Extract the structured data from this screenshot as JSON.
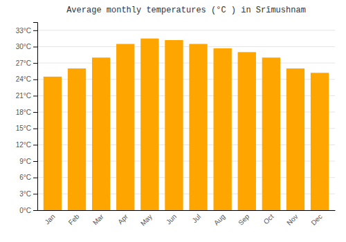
{
  "chart_data": {
    "type": "bar",
    "title": "Average monthly temperatures (°C ) in Srīmushnam",
    "categories": [
      "Jan",
      "Feb",
      "Mar",
      "Apr",
      "May",
      "Jun",
      "Jul",
      "Aug",
      "Sep",
      "Oct",
      "Nov",
      "Dec"
    ],
    "values": [
      24.5,
      26.0,
      28.0,
      30.5,
      31.5,
      31.2,
      30.5,
      29.7,
      29.0,
      28.0,
      26.0,
      25.2
    ],
    "color": "#FFA500",
    "ylim": [
      0,
      34.5
    ],
    "yticks": [
      {
        "value": 0,
        "label": "0°C"
      },
      {
        "value": 3,
        "label": "3°C"
      },
      {
        "value": 6,
        "label": "6°C"
      },
      {
        "value": 9,
        "label": "9°C"
      },
      {
        "value": 12,
        "label": "12°C"
      },
      {
        "value": 15,
        "label": "15°C"
      },
      {
        "value": 18,
        "label": "18°C"
      },
      {
        "value": 21,
        "label": "21°C"
      },
      {
        "value": 24,
        "label": "24°C"
      },
      {
        "value": 27,
        "label": "27°C"
      },
      {
        "value": 30,
        "label": "30°C"
      },
      {
        "value": 33,
        "label": "33°C"
      }
    ],
    "grid": true
  }
}
